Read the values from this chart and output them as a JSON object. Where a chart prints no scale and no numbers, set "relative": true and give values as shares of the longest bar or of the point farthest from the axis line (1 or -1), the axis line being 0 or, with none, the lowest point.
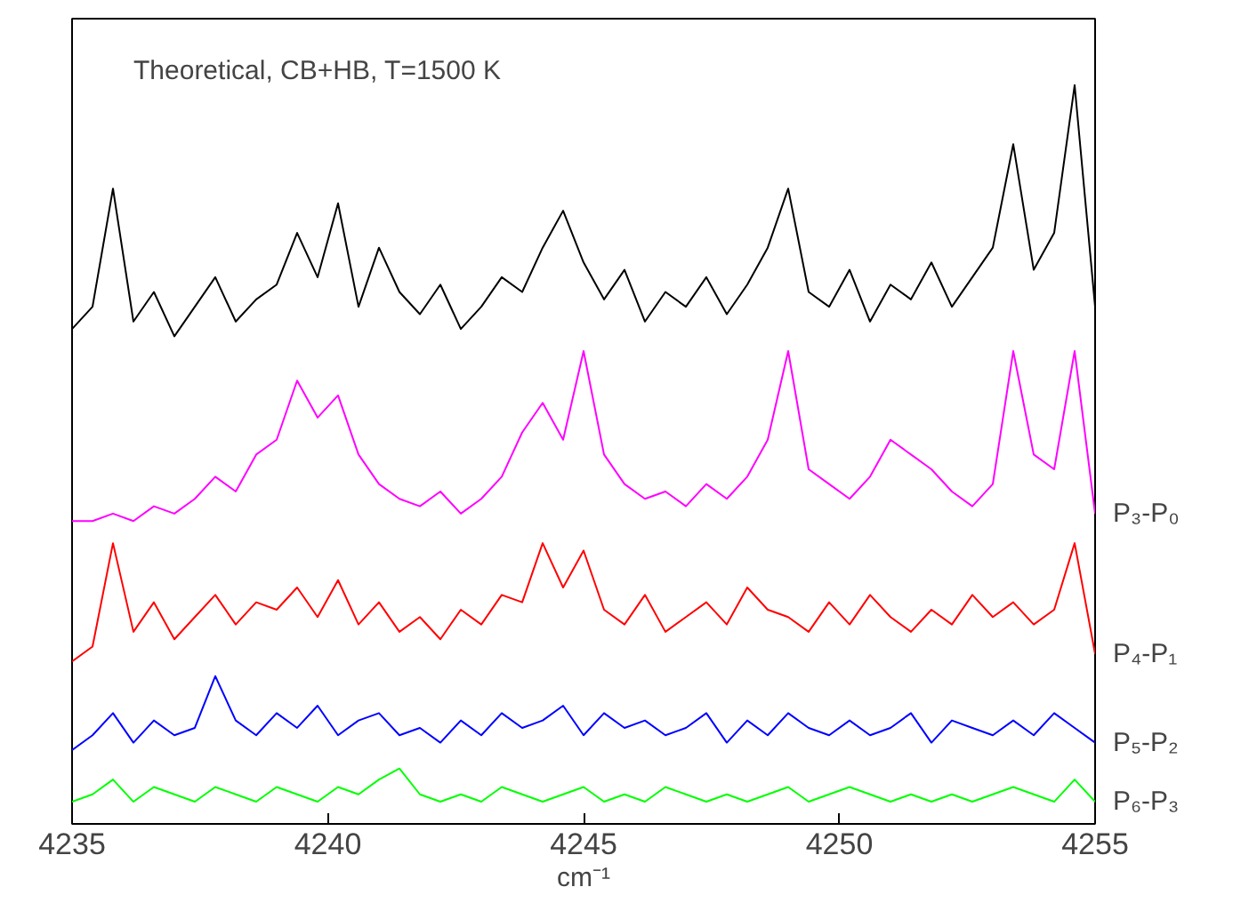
{
  "chart_data": {
    "type": "line",
    "title": "Theoretical, CB+HB, T=1500 K",
    "xlabel": "cm⁻¹",
    "relative": true,
    "xlim": [
      4235,
      4255
    ],
    "xticks": [
      4235,
      4240,
      4245,
      4250,
      4255
    ],
    "grid": false,
    "tick_labels": "x",
    "marker": "none",
    "line_style": "solid",
    "x": [
      4235,
      4235.4,
      4235.8,
      4236.2,
      4236.6,
      4237,
      4237.4,
      4237.8,
      4238.2,
      4238.6,
      4239,
      4239.4,
      4239.8,
      4240.2,
      4240.6,
      4241,
      4241.4,
      4241.8,
      4242.2,
      4242.6,
      4243,
      4243.4,
      4243.8,
      4244.2,
      4244.6,
      4245,
      4245.4,
      4245.8,
      4246.2,
      4246.6,
      4247,
      4247.4,
      4247.8,
      4248.2,
      4248.6,
      4249,
      4249.4,
      4249.8,
      4250.2,
      4250.6,
      4251,
      4251.4,
      4251.8,
      4252.2,
      4252.6,
      4253,
      4253.4,
      4253.8,
      4254.2,
      4254.6,
      4255
    ],
    "series": [
      {
        "color": "#000000",
        "values": [
          0.67,
          0.7,
          0.86,
          0.68,
          0.72,
          0.66,
          0.7,
          0.74,
          0.68,
          0.71,
          0.73,
          0.8,
          0.74,
          0.84,
          0.7,
          0.78,
          0.72,
          0.69,
          0.73,
          0.67,
          0.7,
          0.74,
          0.72,
          0.78,
          0.83,
          0.76,
          0.71,
          0.75,
          0.68,
          0.72,
          0.7,
          0.74,
          0.69,
          0.73,
          0.78,
          0.86,
          0.72,
          0.7,
          0.75,
          0.68,
          0.73,
          0.71,
          0.76,
          0.7,
          0.74,
          0.78,
          0.92,
          0.75,
          0.8,
          1.0,
          0.7
        ]
      },
      {
        "name": "P₃-P₀",
        "color": "#ff00ff",
        "values": [
          0.41,
          0.41,
          0.42,
          0.41,
          0.43,
          0.42,
          0.44,
          0.47,
          0.45,
          0.5,
          0.52,
          0.6,
          0.55,
          0.58,
          0.5,
          0.46,
          0.44,
          0.43,
          0.45,
          0.42,
          0.44,
          0.47,
          0.53,
          0.57,
          0.52,
          0.64,
          0.5,
          0.46,
          0.44,
          0.45,
          0.43,
          0.46,
          0.44,
          0.47,
          0.52,
          0.64,
          0.48,
          0.46,
          0.44,
          0.47,
          0.52,
          0.5,
          0.48,
          0.45,
          0.43,
          0.46,
          0.64,
          0.5,
          0.48,
          0.64,
          0.42
        ]
      },
      {
        "name": "P₄-P₁",
        "color": "#ff0000",
        "values": [
          0.22,
          0.24,
          0.38,
          0.26,
          0.3,
          0.25,
          0.28,
          0.31,
          0.27,
          0.3,
          0.29,
          0.32,
          0.28,
          0.33,
          0.27,
          0.3,
          0.26,
          0.28,
          0.25,
          0.29,
          0.27,
          0.31,
          0.3,
          0.38,
          0.32,
          0.37,
          0.29,
          0.27,
          0.31,
          0.26,
          0.28,
          0.3,
          0.27,
          0.32,
          0.29,
          0.28,
          0.26,
          0.3,
          0.27,
          0.31,
          0.28,
          0.26,
          0.29,
          0.27,
          0.31,
          0.28,
          0.3,
          0.27,
          0.29,
          0.38,
          0.23
        ]
      },
      {
        "name": "P₅-P₂",
        "color": "#0000ff",
        "values": [
          0.1,
          0.12,
          0.15,
          0.11,
          0.14,
          0.12,
          0.13,
          0.2,
          0.14,
          0.12,
          0.15,
          0.13,
          0.16,
          0.12,
          0.14,
          0.15,
          0.12,
          0.13,
          0.11,
          0.14,
          0.12,
          0.15,
          0.13,
          0.14,
          0.16,
          0.12,
          0.15,
          0.13,
          0.14,
          0.12,
          0.13,
          0.15,
          0.11,
          0.14,
          0.12,
          0.15,
          0.13,
          0.12,
          0.14,
          0.12,
          0.13,
          0.15,
          0.11,
          0.14,
          0.13,
          0.12,
          0.14,
          0.12,
          0.15,
          0.13,
          0.11
        ]
      },
      {
        "name": "P₆-P₃",
        "color": "#00ff00",
        "values": [
          0.03,
          0.04,
          0.06,
          0.03,
          0.05,
          0.04,
          0.03,
          0.05,
          0.04,
          0.03,
          0.05,
          0.04,
          0.03,
          0.05,
          0.04,
          0.06,
          0.075,
          0.04,
          0.03,
          0.04,
          0.03,
          0.05,
          0.04,
          0.03,
          0.04,
          0.05,
          0.03,
          0.04,
          0.03,
          0.05,
          0.04,
          0.03,
          0.04,
          0.03,
          0.04,
          0.05,
          0.03,
          0.04,
          0.05,
          0.04,
          0.03,
          0.04,
          0.03,
          0.04,
          0.03,
          0.04,
          0.05,
          0.04,
          0.03,
          0.06,
          0.03
        ]
      }
    ]
  }
}
